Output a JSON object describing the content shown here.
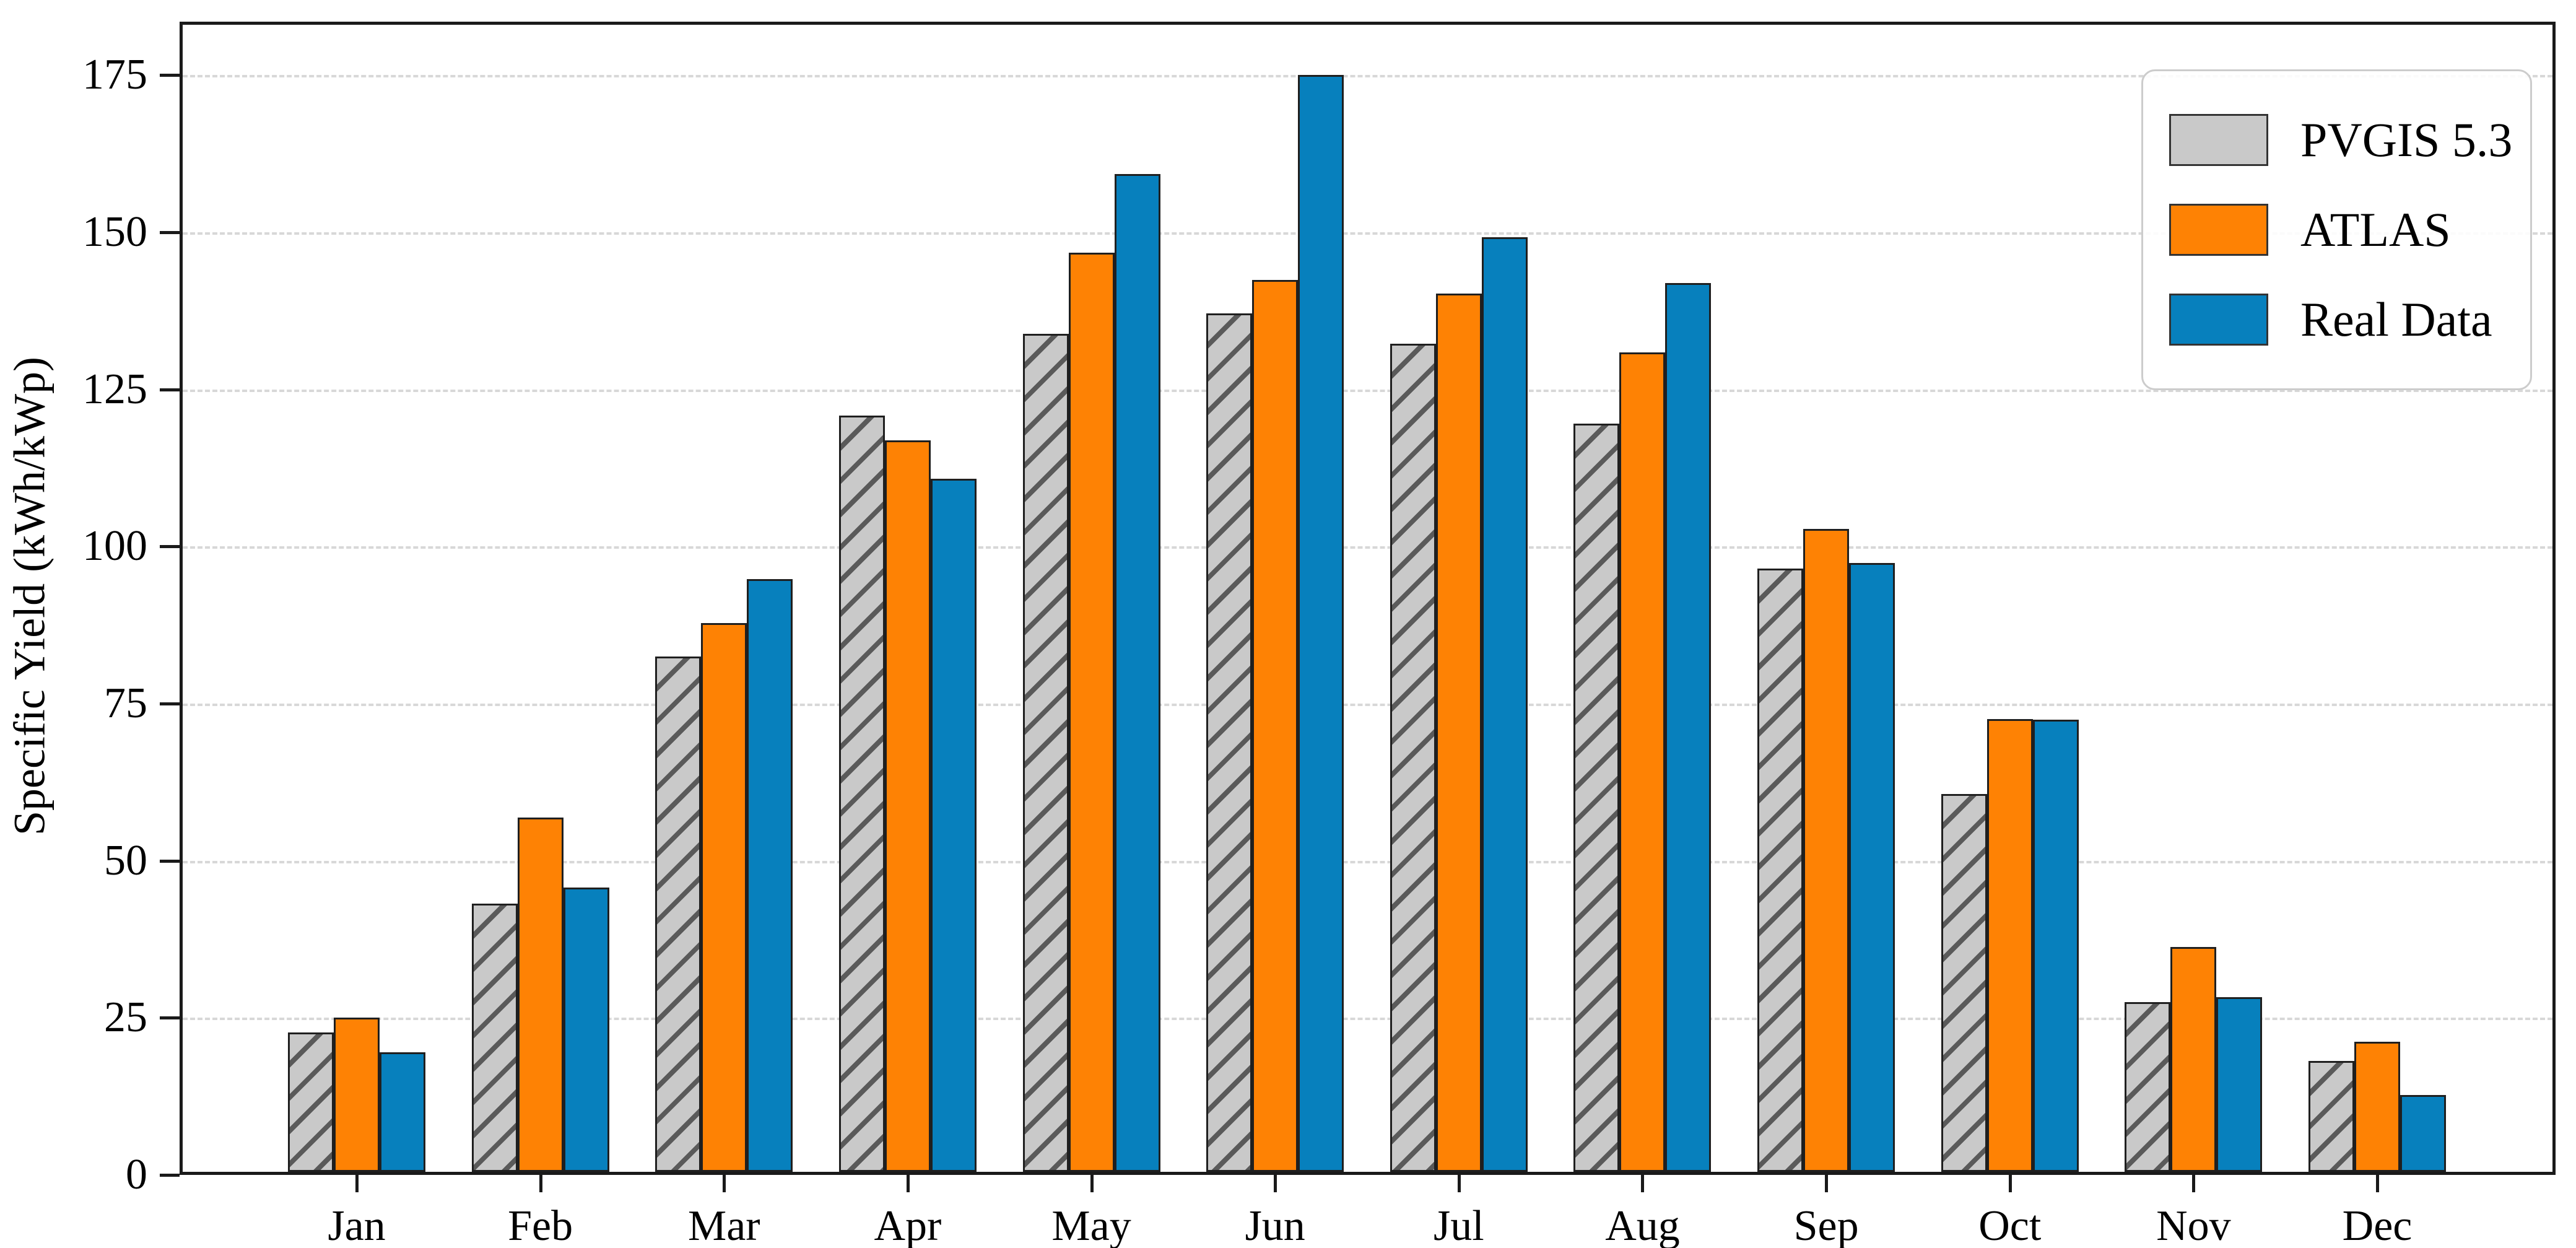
{
  "figure": {
    "ylabel": "Specific Yield (kWh/kWp)",
    "yticks": [
      0,
      25,
      50,
      75,
      100,
      125,
      150,
      175
    ]
  },
  "chart_data": {
    "type": "bar",
    "title": "",
    "xlabel": "",
    "ylabel": "Specific Yield (kWh/kWp)",
    "categories": [
      "Jan",
      "Feb",
      "Mar",
      "Apr",
      "May",
      "Jun",
      "Jul",
      "Aug",
      "Sep",
      "Oct",
      "Nov",
      "Dec"
    ],
    "series": [
      {
        "name": "PVGIS 5.3",
        "color": "#c9c9c9",
        "hatch": "/",
        "values": [
          22.2,
          42.7,
          82.0,
          120.3,
          133.3,
          136.6,
          131.8,
          119.0,
          96.0,
          60.1,
          27.0,
          17.6
        ]
      },
      {
        "name": "ATLAS",
        "color": "#fe8204",
        "hatch": null,
        "values": [
          24.5,
          56.4,
          87.3,
          116.4,
          146.2,
          141.9,
          139.7,
          130.4,
          102.3,
          72.0,
          35.8,
          20.7
        ]
      },
      {
        "name": "Real Data",
        "color": "#0780bd",
        "hatch": null,
        "values": [
          19.0,
          45.2,
          94.3,
          110.3,
          158.8,
          174.5,
          148.7,
          141.4,
          96.9,
          71.9,
          27.8,
          12.2
        ]
      }
    ],
    "ylim": [
      0,
      183.5
    ],
    "yticks": [
      0,
      25,
      50,
      75,
      100,
      125,
      150,
      175
    ],
    "grid": "horizontal-dashed",
    "legend_position": "upper right",
    "legend_labels": [
      "PVGIS 5.3",
      "ATLAS",
      "Real Data"
    ]
  }
}
